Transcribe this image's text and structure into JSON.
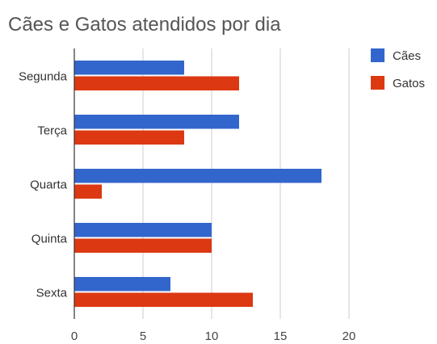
{
  "chart_data": {
    "type": "bar",
    "orientation": "horizontal",
    "title": "Cães e Gatos atendidos por dia",
    "categories": [
      "Segunda",
      "Terça",
      "Quarta",
      "Quinta",
      "Sexta"
    ],
    "series": [
      {
        "name": "Cães",
        "color": "#3366cc",
        "values": [
          8,
          12,
          18,
          10,
          7
        ]
      },
      {
        "name": "Gatos",
        "color": "#dc3912",
        "values": [
          12,
          8,
          2,
          10,
          13
        ]
      }
    ],
    "xlim": [
      0,
      20
    ],
    "x_ticks": [
      "0",
      "5",
      "10",
      "15",
      "20"
    ],
    "grid": true,
    "legend_position": "right"
  }
}
